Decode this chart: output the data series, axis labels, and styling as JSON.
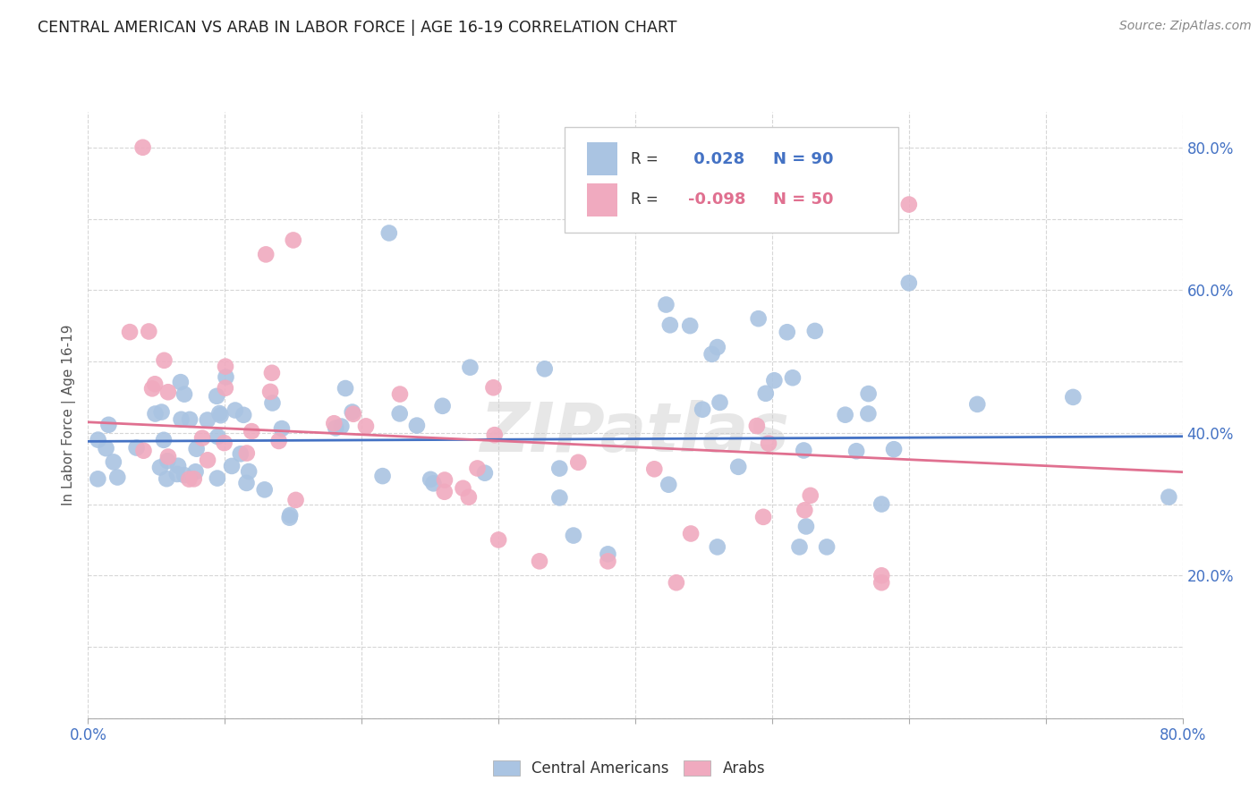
{
  "title": "CENTRAL AMERICAN VS ARAB IN LABOR FORCE | AGE 16-19 CORRELATION CHART",
  "source": "Source: ZipAtlas.com",
  "ylabel": "In Labor Force | Age 16-19",
  "x_min": 0.0,
  "x_max": 0.8,
  "y_min": 0.0,
  "y_max": 0.85,
  "blue_color": "#aac4e2",
  "pink_color": "#f0aabf",
  "blue_line_color": "#4472c4",
  "pink_line_color": "#e07090",
  "watermark": "ZIPatlas",
  "legend_blue_label": "Central Americans",
  "legend_pink_label": "Arabs",
  "R_blue": 0.028,
  "N_blue": 90,
  "R_pink": -0.098,
  "N_pink": 50,
  "title_color": "#222222",
  "source_color": "#888888",
  "axis_label_color": "#555555",
  "right_tick_color": "#4472c4",
  "grid_color": "#cccccc",
  "blue_trend_y0": 0.388,
  "blue_trend_y1": 0.395,
  "pink_trend_y0": 0.415,
  "pink_trend_y1": 0.345
}
